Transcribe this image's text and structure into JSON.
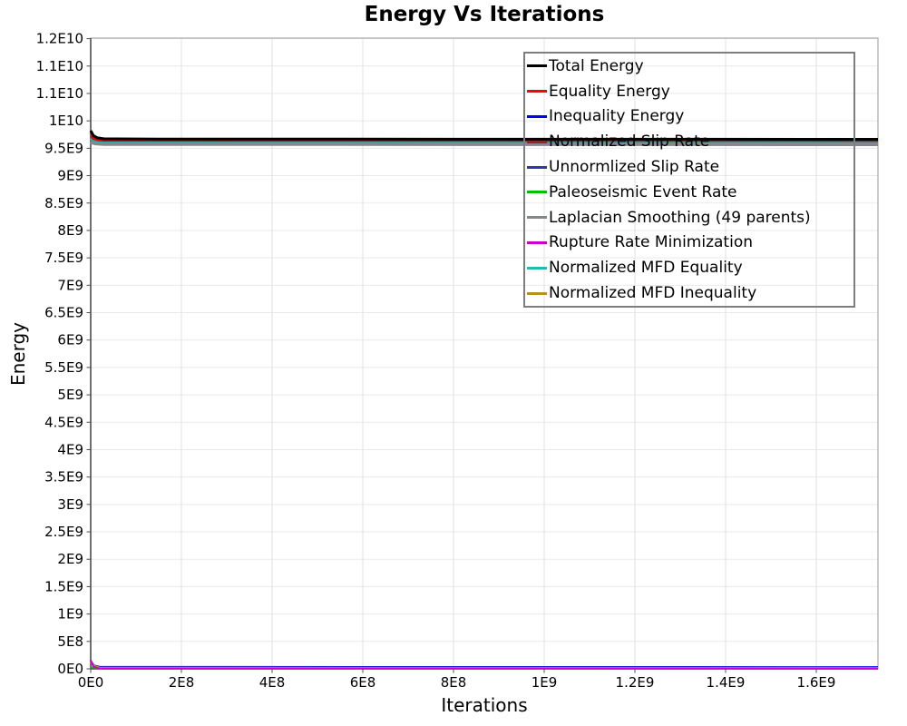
{
  "chart_data": {
    "type": "line",
    "title": "Energy Vs Iterations",
    "xlabel": "Iterations",
    "ylabel": "Energy",
    "xlim": [
      0,
      1736000000
    ],
    "ylim": [
      0,
      11510000000
    ],
    "grid": true,
    "legend_position": "top-right-inside",
    "x_ticks": [
      {
        "value": 0,
        "label": "0E0"
      },
      {
        "value": 200000000,
        "label": "2E8"
      },
      {
        "value": 400000000,
        "label": "4E8"
      },
      {
        "value": 600000000,
        "label": "6E8"
      },
      {
        "value": 800000000,
        "label": "8E8"
      },
      {
        "value": 1000000000,
        "label": "1E9"
      },
      {
        "value": 1200000000,
        "label": "1.2E9"
      },
      {
        "value": 1400000000,
        "label": "1.4E9"
      },
      {
        "value": 1600000000,
        "label": "1.6E9"
      }
    ],
    "y_ticks": [
      {
        "value": 0,
        "label": "0E0"
      },
      {
        "value": 500000000,
        "label": "5E8"
      },
      {
        "value": 1000000000,
        "label": "1E9"
      },
      {
        "value": 1500000000,
        "label": "1.5E9"
      },
      {
        "value": 2000000000,
        "label": "2E9"
      },
      {
        "value": 2500000000,
        "label": "2.5E9"
      },
      {
        "value": 3000000000,
        "label": "3E9"
      },
      {
        "value": 3500000000,
        "label": "3.5E9"
      },
      {
        "value": 4000000000,
        "label": "4E9"
      },
      {
        "value": 4500000000,
        "label": "4.5E9"
      },
      {
        "value": 5000000000,
        "label": "5E9"
      },
      {
        "value": 5500000000,
        "label": "5.5E9"
      },
      {
        "value": 6000000000,
        "label": "6E9"
      },
      {
        "value": 6500000000,
        "label": "6.5E9"
      },
      {
        "value": 7000000000,
        "label": "7E9"
      },
      {
        "value": 7500000000,
        "label": "7.5E9"
      },
      {
        "value": 8000000000,
        "label": "8E9"
      },
      {
        "value": 8500000000,
        "label": "8.5E9"
      },
      {
        "value": 9000000000,
        "label": "9E9"
      },
      {
        "value": 9500000000,
        "label": "9.5E9"
      },
      {
        "value": 10000000000,
        "label": "1E10"
      },
      {
        "value": 10500000000,
        "label": "1.1E10"
      },
      {
        "value": 11000000000,
        "label": "1.1E10"
      },
      {
        "value": 11500000000,
        "label": "1.2E10"
      }
    ],
    "series": [
      {
        "name": "Total Energy",
        "color": "#000000",
        "width": 3,
        "z": 5,
        "points": [
          [
            0,
            9820000000
          ],
          [
            6000000,
            9730000000
          ],
          [
            15000000,
            9690000000
          ],
          [
            30000000,
            9672000000
          ],
          [
            150000000,
            9668000000
          ],
          [
            1736000000,
            9663000000
          ]
        ]
      },
      {
        "name": "Equality Energy",
        "color": "#ff0000",
        "width": 2.5,
        "z": 4,
        "points": [
          [
            0,
            9780000000
          ],
          [
            6000000,
            9700000000
          ],
          [
            15000000,
            9666000000
          ],
          [
            30000000,
            9655000000
          ],
          [
            150000000,
            9652000000
          ],
          [
            1736000000,
            9648000000
          ]
        ]
      },
      {
        "name": "Inequality Energy",
        "color": "#0000ff",
        "width": 2,
        "z": 8,
        "points": [
          [
            0,
            140000000
          ],
          [
            8000000,
            60000000
          ],
          [
            20000000,
            34000000
          ],
          [
            1736000000,
            31000000
          ]
        ]
      },
      {
        "name": "Normalized Slip Rate",
        "color": "#a02020",
        "width": 2.5,
        "z": 3,
        "points": [
          [
            0,
            9730000000
          ],
          [
            6000000,
            9670000000
          ],
          [
            15000000,
            9648000000
          ],
          [
            30000000,
            9640000000
          ],
          [
            1736000000,
            9636000000
          ]
        ]
      },
      {
        "name": "Unnormlized Slip Rate",
        "color": "#3333aa",
        "width": 2,
        "z": 7,
        "points": [
          [
            0,
            110000000
          ],
          [
            8000000,
            45000000
          ],
          [
            20000000,
            25000000
          ],
          [
            1736000000,
            23000000
          ]
        ]
      },
      {
        "name": "Paleoseismic Event Rate",
        "color": "#00c000",
        "width": 2,
        "z": 6,
        "points": [
          [
            0,
            30000000
          ],
          [
            20000000,
            8000000
          ],
          [
            1736000000,
            6000000
          ]
        ]
      },
      {
        "name": "Laplacian Smoothing (49 parents)",
        "color": "#82888e",
        "width": 5,
        "z": 1,
        "points": [
          [
            0,
            9620000000
          ],
          [
            10000000,
            9595000000
          ],
          [
            30000000,
            9585000000
          ],
          [
            1736000000,
            9580000000
          ]
        ]
      },
      {
        "name": "Rupture Rate Minimization",
        "color": "#cc00cc",
        "width": 2,
        "z": 10,
        "points": [
          [
            0,
            160000000
          ],
          [
            6000000,
            40000000
          ],
          [
            18000000,
            4000000
          ],
          [
            1736000000,
            3000000
          ]
        ]
      },
      {
        "name": "Normalized MFD Equality",
        "color": "#27b7b3",
        "width": 2.5,
        "z": 2,
        "points": [
          [
            0,
            9680000000
          ],
          [
            10000000,
            9630000000
          ],
          [
            30000000,
            9617000000
          ],
          [
            1736000000,
            9613000000
          ]
        ]
      },
      {
        "name": "Normalized MFD Inequality",
        "color": "#b3931f",
        "width": 2.5,
        "z": 9,
        "points": [
          [
            0,
            125000000
          ],
          [
            8000000,
            50000000
          ],
          [
            20000000,
            16000000
          ],
          [
            1736000000,
            14000000
          ]
        ]
      }
    ]
  }
}
